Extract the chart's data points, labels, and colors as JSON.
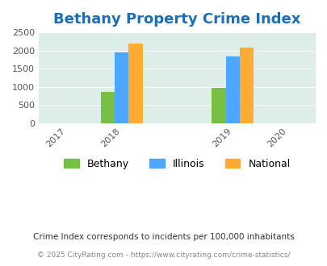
{
  "title": "Bethany Property Crime Index",
  "bar_years": [
    2018,
    2019
  ],
  "bethany": [
    870,
    960
  ],
  "illinois": [
    1940,
    1845
  ],
  "national": [
    2195,
    2090
  ],
  "bar_colors": {
    "bethany": "#76c043",
    "illinois": "#4da6ff",
    "national": "#ffaa33"
  },
  "ylim": [
    0,
    2500
  ],
  "yticks": [
    0,
    500,
    1000,
    1500,
    2000,
    2500
  ],
  "background_color": "#ddeee8",
  "title_color": "#1e6eb5",
  "title_fontsize": 13,
  "legend_labels": [
    "Bethany",
    "Illinois",
    "National"
  ],
  "footnote1": "Crime Index corresponds to incidents per 100,000 inhabitants",
  "footnote2": "© 2025 CityRating.com - https://www.cityrating.com/crime-statistics/",
  "bar_width": 0.25
}
